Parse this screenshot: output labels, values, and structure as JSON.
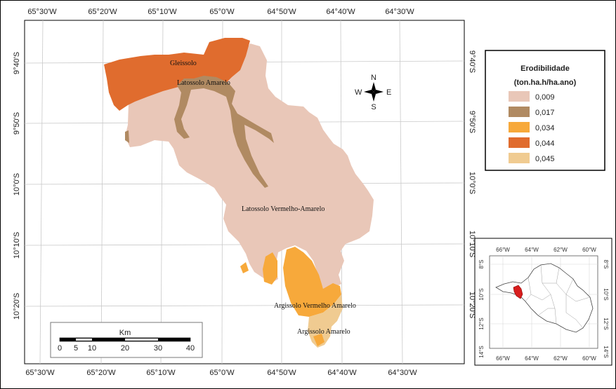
{
  "map": {
    "top_lon_labels": [
      "65°30'W",
      "65°20'W",
      "65°10'W",
      "65°0'W",
      "64°50'W",
      "64°40'W",
      "64°30'W"
    ],
    "bottom_lon_labels": [
      "65°30'W",
      "65°20'W",
      "65°10'W",
      "65°0'W",
      "64°50'W",
      "64°40'W",
      "64°30'W"
    ],
    "left_lat_labels": [
      "9°40'S",
      "9°50'S",
      "10°0'S",
      "10°10'S",
      "10°20'S"
    ],
    "right_lat_labels": [
      "9°40'S",
      "9°50'S",
      "10°0'S",
      "10°10'S",
      "10°20'S"
    ],
    "soil_labels": {
      "gleissolo": "Gleissolo",
      "latossolo_amarelo": "Latossolo Amarelo",
      "latossolo_vermelho_amarelo": "Latossolo Vermelho-Amarelo",
      "argissolo_vermelho_amarelo": "Argissolo Vermelho Amarelo",
      "argissolo_amarelo": "Argissolo Amarelo"
    },
    "colors": {
      "c0009": "#e9c7b8",
      "c0017": "#b08a62",
      "c0034": "#f7a93b",
      "c0044": "#e06c2e",
      "c0045": "#f0cb91"
    }
  },
  "compass": {
    "n": "N",
    "s": "S",
    "e": "E",
    "w": "W"
  },
  "legend": {
    "title": "Erodibilidade",
    "subtitle": "(ton.ha.h/ha.ano)",
    "items": [
      {
        "label": "0,009",
        "color": "#e9c7b8"
      },
      {
        "label": "0,017",
        "color": "#b08a62"
      },
      {
        "label": "0,034",
        "color": "#f7a93b"
      },
      {
        "label": "0,044",
        "color": "#e06c2e"
      },
      {
        "label": "0,045",
        "color": "#f0cb91"
      }
    ]
  },
  "scalebar": {
    "unit": "Km",
    "ticks": [
      "0",
      "5",
      "10",
      "20",
      "30",
      "40"
    ]
  },
  "inset": {
    "top_labels": [
      "66°W",
      "64°W",
      "62°W",
      "60°W"
    ],
    "bottom_labels": [
      "66°W",
      "64°W",
      "62°W",
      "60°W"
    ],
    "left_labels": [
      "8°S",
      "10°S",
      "12°S",
      "14°S"
    ],
    "right_labels": [
      "8°S",
      "10°S",
      "12°S",
      "14°S"
    ]
  }
}
